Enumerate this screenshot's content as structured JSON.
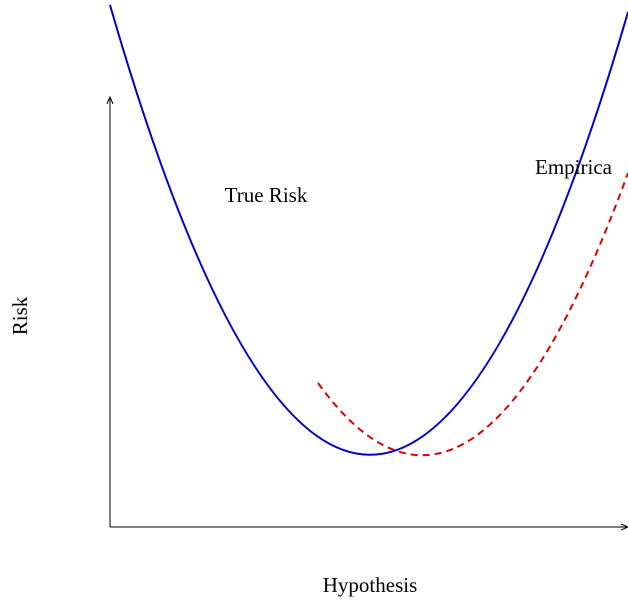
{
  "labels": {
    "y_axis": "Risk",
    "x_axis": "Hypothesis",
    "true_risk": "True Risk",
    "empirical_risk": "Empirica"
  }
}
